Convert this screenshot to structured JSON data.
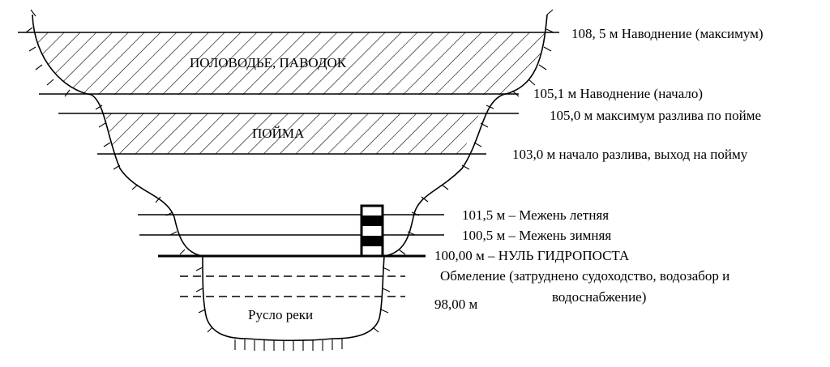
{
  "zones": {
    "flood": "ПОЛОВОДЬЕ, ПАВОДОК",
    "floodplain": "ПОЙМА",
    "channel": "Русло реки"
  },
  "levels": [
    {
      "label": "108, 5 м Наводнение (максимум)"
    },
    {
      "label": "105,1 м Наводнение (начало)"
    },
    {
      "label": "105,0 м максимум разлива по пойме"
    },
    {
      "label": "103,0 м начало разлива, выход на пойму"
    },
    {
      "label": "101,5 м – Межень летняя"
    },
    {
      "label": "100,5 м – Межень зимняя"
    },
    {
      "label": "100,00 м – НУЛЬ ГИДРОПОСТА"
    },
    {
      "label": "Обмеление (затруднено судоходство, водозабор и"
    },
    {
      "label": "водоснабжение)"
    },
    {
      "label": "98,00 м"
    }
  ]
}
